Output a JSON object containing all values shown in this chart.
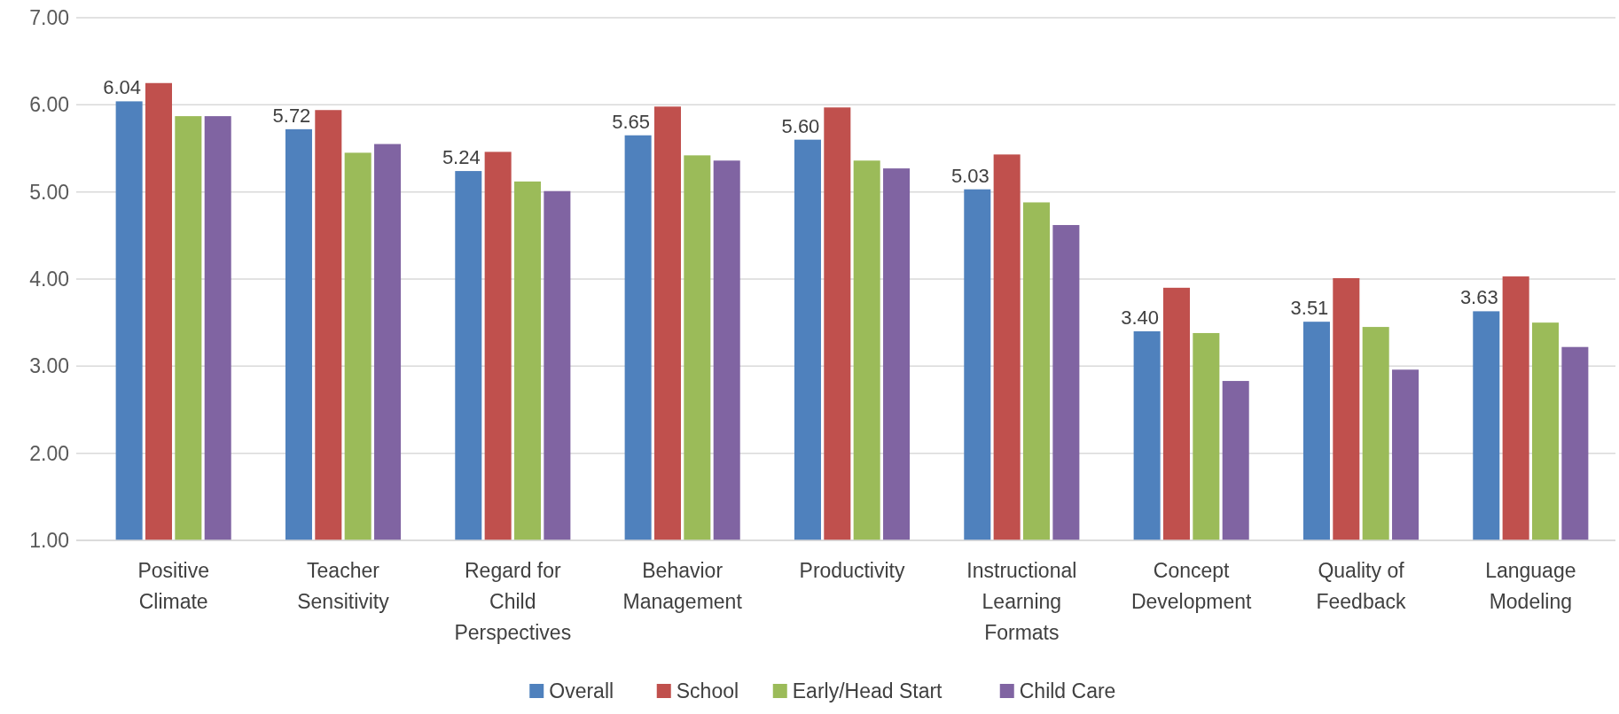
{
  "chart_data": {
    "type": "bar",
    "categories": [
      "Positive Climate",
      "Teacher Sensitivity",
      "Regard for Child Perspectives",
      "Behavior Management",
      "Productivity",
      "Instructional Learning Formats",
      "Concept Development",
      "Quality of Feedback",
      "Language Modeling"
    ],
    "series": [
      {
        "name": "Overall",
        "color": "#4f81bd",
        "values": [
          6.04,
          5.72,
          5.24,
          5.65,
          5.6,
          5.03,
          3.4,
          3.51,
          3.63
        ],
        "value_labels": [
          "6.04",
          "5.72",
          "5.24",
          "5.65",
          "5.60",
          "5.03",
          "3.40",
          "3.51",
          "3.63"
        ]
      },
      {
        "name": "School",
        "color": "#c0504d",
        "values": [
          6.25,
          5.94,
          5.46,
          5.98,
          5.97,
          5.43,
          3.9,
          4.01,
          4.03
        ]
      },
      {
        "name": "Early/Head Start",
        "color": "#9bbb59",
        "values": [
          5.87,
          5.45,
          5.12,
          5.42,
          5.36,
          4.88,
          3.38,
          3.45,
          3.5
        ]
      },
      {
        "name": "Child Care",
        "color": "#8064a2",
        "values": [
          5.87,
          5.55,
          5.01,
          5.36,
          5.27,
          4.62,
          2.83,
          2.96,
          3.22
        ]
      }
    ],
    "ylim": [
      1,
      7
    ],
    "yticks": [
      {
        "value": 1,
        "label": "1.00"
      },
      {
        "value": 2,
        "label": "2.00"
      },
      {
        "value": 3,
        "label": "3.00"
      },
      {
        "value": 4,
        "label": "4.00"
      },
      {
        "value": 5,
        "label": "5.00"
      },
      {
        "value": 6,
        "label": "6.00"
      },
      {
        "value": 7,
        "label": "7.00"
      }
    ],
    "grid": "y",
    "legend": "bottom"
  }
}
